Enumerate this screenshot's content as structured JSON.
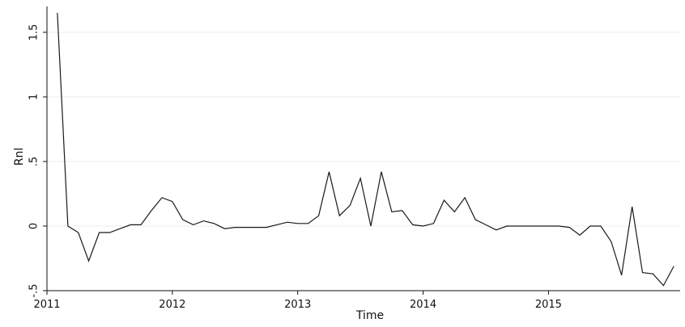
{
  "chart_data": {
    "type": "line",
    "xlabel": "Time",
    "ylabel": "Rnl",
    "xlim": [
      2011.0,
      2016.05
    ],
    "ylim": [
      -0.5,
      1.7
    ],
    "x_ticks": [
      {
        "value": 2011,
        "label": "2011"
      },
      {
        "value": 2012,
        "label": "2012"
      },
      {
        "value": 2013,
        "label": "2013"
      },
      {
        "value": 2014,
        "label": "2014"
      },
      {
        "value": 2015,
        "label": "2015"
      }
    ],
    "y_ticks": [
      {
        "value": -0.5,
        "label": "-.5"
      },
      {
        "value": 0,
        "label": "0"
      },
      {
        "value": 0.5,
        "label": ".5"
      },
      {
        "value": 1,
        "label": "1"
      },
      {
        "value": 1.5,
        "label": "1.5"
      }
    ],
    "grid": true,
    "line_color": "#1a1a1a",
    "grid_color": "#e8eef2",
    "series": [
      {
        "values": [
          [
            2011.083,
            1.65
          ],
          [
            2011.167,
            0.0
          ],
          [
            2011.25,
            -0.05
          ],
          [
            2011.333,
            -0.27
          ],
          [
            2011.417,
            -0.05
          ],
          [
            2011.5,
            -0.05
          ],
          [
            2011.583,
            -0.02
          ],
          [
            2011.667,
            0.01
          ],
          [
            2011.75,
            0.01
          ],
          [
            2011.833,
            0.12
          ],
          [
            2011.917,
            0.22
          ],
          [
            2012.0,
            0.19
          ],
          [
            2012.083,
            0.05
          ],
          [
            2012.167,
            0.01
          ],
          [
            2012.25,
            0.04
          ],
          [
            2012.333,
            0.02
          ],
          [
            2012.417,
            -0.02
          ],
          [
            2012.5,
            -0.01
          ],
          [
            2012.583,
            -0.01
          ],
          [
            2012.667,
            -0.01
          ],
          [
            2012.75,
            -0.01
          ],
          [
            2012.833,
            0.01
          ],
          [
            2012.917,
            0.03
          ],
          [
            2013.0,
            0.02
          ],
          [
            2013.083,
            0.02
          ],
          [
            2013.167,
            0.08
          ],
          [
            2013.25,
            0.42
          ],
          [
            2013.333,
            0.08
          ],
          [
            2013.417,
            0.16
          ],
          [
            2013.5,
            0.37
          ],
          [
            2013.583,
            0.0
          ],
          [
            2013.667,
            0.42
          ],
          [
            2013.75,
            0.11
          ],
          [
            2013.833,
            0.12
          ],
          [
            2013.917,
            0.01
          ],
          [
            2014.0,
            0.0
          ],
          [
            2014.083,
            0.02
          ],
          [
            2014.167,
            0.2
          ],
          [
            2014.25,
            0.11
          ],
          [
            2014.333,
            0.22
          ],
          [
            2014.417,
            0.05
          ],
          [
            2014.5,
            0.01
          ],
          [
            2014.583,
            -0.03
          ],
          [
            2014.667,
            0.0
          ],
          [
            2014.75,
            0.0
          ],
          [
            2014.833,
            0.0
          ],
          [
            2014.917,
            0.0
          ],
          [
            2015.0,
            0.0
          ],
          [
            2015.083,
            0.0
          ],
          [
            2015.167,
            -0.01
          ],
          [
            2015.25,
            -0.07
          ],
          [
            2015.333,
            0.0
          ],
          [
            2015.417,
            0.0
          ],
          [
            2015.5,
            -0.12
          ],
          [
            2015.583,
            -0.38
          ],
          [
            2015.667,
            0.15
          ],
          [
            2015.75,
            -0.36
          ],
          [
            2015.833,
            -0.37
          ],
          [
            2015.917,
            -0.46
          ],
          [
            2016.0,
            -0.31
          ]
        ]
      }
    ]
  }
}
